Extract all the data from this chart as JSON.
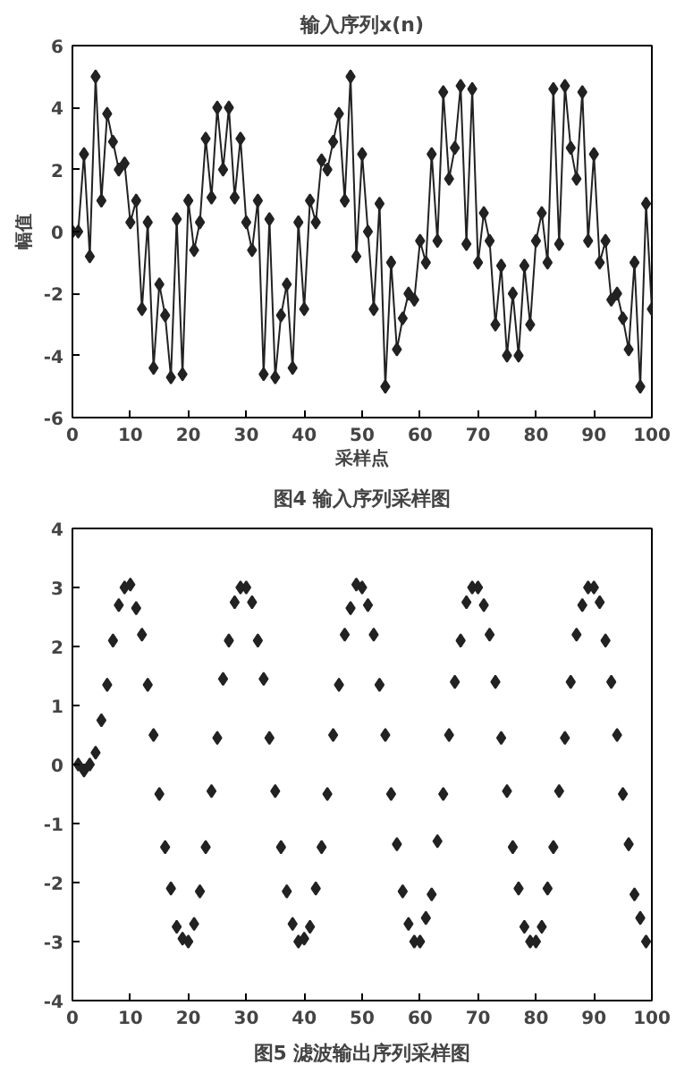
{
  "chart_data": [
    {
      "type": "line",
      "title": "输入序列x(n)",
      "xlabel": "采样点",
      "ylabel": "幅值",
      "annotations": [
        "图4 输入序列采样图"
      ],
      "marker": "diamond",
      "line_style": "solid",
      "color": "#222222",
      "xlim": [
        0,
        100
      ],
      "ylim": [
        -6,
        6
      ],
      "xticks": [
        0,
        10,
        20,
        30,
        40,
        50,
        60,
        70,
        80,
        90,
        100
      ],
      "yticks": [
        -6,
        -4,
        -2,
        0,
        2,
        4,
        6
      ],
      "x": [
        0,
        1,
        2,
        3,
        4,
        5,
        6,
        7,
        8,
        9,
        10,
        11,
        12,
        13,
        14,
        15,
        16,
        17,
        18,
        19,
        20,
        21,
        22,
        23,
        24,
        25,
        26,
        27,
        28,
        29,
        30,
        31,
        32,
        33,
        34,
        35,
        36,
        37,
        38,
        39,
        40,
        41,
        42,
        43,
        44,
        45,
        46,
        47,
        48,
        49,
        50,
        51,
        52,
        53,
        54,
        55,
        56,
        57,
        58,
        59,
        60,
        61,
        62,
        63,
        64,
        65,
        66,
        67,
        68,
        69,
        70,
        71,
        72,
        73,
        74,
        75,
        76,
        77,
        78,
        79,
        80,
        81,
        82,
        83,
        84,
        85,
        86,
        87,
        88,
        89,
        90,
        91,
        92,
        93,
        94,
        95,
        96,
        97,
        98,
        99,
        100
      ],
      "values": [
        0,
        0,
        2.5,
        -0.8,
        5,
        1,
        3.8,
        2.9,
        2,
        2.2,
        0.3,
        1,
        -2.5,
        0.3,
        -4.4,
        -1.7,
        -2.7,
        -4.7,
        0.4,
        -4.6,
        1,
        -0.6,
        0.3,
        3,
        1.1,
        4,
        2,
        4,
        1.1,
        3,
        0.3,
        -0.6,
        1,
        -4.6,
        0.4,
        -4.7,
        -2.7,
        -1.7,
        -4.4,
        0.3,
        -2.5,
        1,
        0.3,
        2.3,
        2,
        2.9,
        3.8,
        1,
        5,
        -0.8,
        2.5,
        0,
        -2.5,
        0.9,
        -5,
        -1,
        -3.8,
        -2.8,
        -2,
        -2.2,
        -0.3,
        -1,
        2.5,
        -0.3,
        4.5,
        1.7,
        2.7,
        4.7,
        -0.4,
        4.6,
        -1,
        0.6,
        -0.3,
        -3,
        -1.1,
        -4,
        -2,
        -4,
        -1.1,
        -3,
        -0.3,
        0.6,
        -1,
        4.6,
        -0.4,
        4.7,
        2.7,
        1.7,
        4.5,
        -0.3,
        2.5,
        -1,
        -0.3,
        -2.2,
        -2,
        -2.8,
        -3.8,
        -1,
        -5,
        0.9,
        -2.5
      ]
    },
    {
      "type": "scatter",
      "annotations": [
        "图5 滤波输出序列采样图"
      ],
      "marker": "diamond",
      "color": "#222222",
      "xlim": [
        0,
        100
      ],
      "ylim": [
        -4,
        4
      ],
      "xticks": [
        0,
        10,
        20,
        30,
        40,
        50,
        60,
        70,
        80,
        90,
        100
      ],
      "yticks": [
        -4,
        -3,
        -2,
        -1,
        0,
        1,
        2,
        3,
        4
      ],
      "x": [
        1,
        2,
        3,
        4,
        5,
        6,
        7,
        8,
        9,
        10,
        11,
        12,
        13,
        14,
        15,
        16,
        17,
        18,
        19,
        20,
        21,
        22,
        23,
        24,
        25,
        26,
        27,
        28,
        29,
        30,
        31,
        32,
        33,
        34,
        35,
        36,
        37,
        38,
        39,
        40,
        41,
        42,
        43,
        44,
        45,
        46,
        47,
        48,
        49,
        50,
        51,
        52,
        53,
        54,
        55,
        56,
        57,
        58,
        59,
        60,
        61,
        62,
        63,
        64,
        65,
        66,
        67,
        68,
        69,
        70,
        71,
        72,
        73,
        74,
        75,
        76,
        77,
        78,
        79,
        80,
        81,
        82,
        83,
        84,
        85,
        86,
        87,
        88,
        89,
        90,
        91,
        92,
        93,
        94,
        95,
        96,
        97,
        98,
        99
      ],
      "values": [
        0,
        -0.1,
        0,
        0.2,
        0.75,
        1.35,
        2.1,
        2.7,
        3,
        3.05,
        2.65,
        2.2,
        1.35,
        0.5,
        -0.5,
        -1.4,
        -2.1,
        -2.75,
        -2.95,
        -3,
        -2.7,
        -2.15,
        -1.4,
        -0.45,
        0.45,
        1.45,
        2.1,
        2.75,
        3,
        3,
        2.75,
        2.1,
        1.45,
        0.45,
        -0.45,
        -1.4,
        -2.15,
        -2.7,
        -3,
        -2.95,
        -2.75,
        -2.1,
        -1.4,
        -0.5,
        0.5,
        1.35,
        2.2,
        2.65,
        3.05,
        3,
        2.7,
        2.2,
        1.35,
        0.5,
        -0.5,
        -1.35,
        -2.15,
        -2.7,
        -3,
        -3,
        -2.6,
        -2.2,
        -1.3,
        -0.5,
        0.5,
        1.4,
        2.1,
        2.75,
        3,
        3,
        2.7,
        2.2,
        1.4,
        0.45,
        -0.45,
        -1.4,
        -2.1,
        -2.75,
        -3,
        -3,
        -2.75,
        -2.1,
        -1.4,
        -0.45,
        0.45,
        1.4,
        2.2,
        2.7,
        3,
        3,
        2.75,
        2.1,
        1.4,
        0.5,
        -0.5,
        -1.35,
        -2.2,
        -2.6,
        -3
      ]
    }
  ]
}
